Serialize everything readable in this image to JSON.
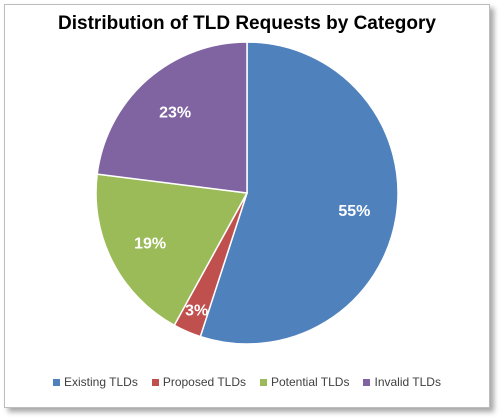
{
  "chart_data": {
    "type": "pie",
    "title": "Distribution  of TLD Requests by Category",
    "slices": [
      {
        "name": "Existing TLDs",
        "value": 55,
        "label": "55%",
        "color": "#4f81bd"
      },
      {
        "name": "Proposed TLDs",
        "value": 3,
        "label": "3%",
        "color": "#c0504d"
      },
      {
        "name": "Potential TLDs",
        "value": 19,
        "label": "19%",
        "color": "#9bbb59"
      },
      {
        "name": "Invalid TLDs",
        "value": 23,
        "label": "23%",
        "color": "#8064a2"
      }
    ],
    "legend_position": "bottom"
  }
}
